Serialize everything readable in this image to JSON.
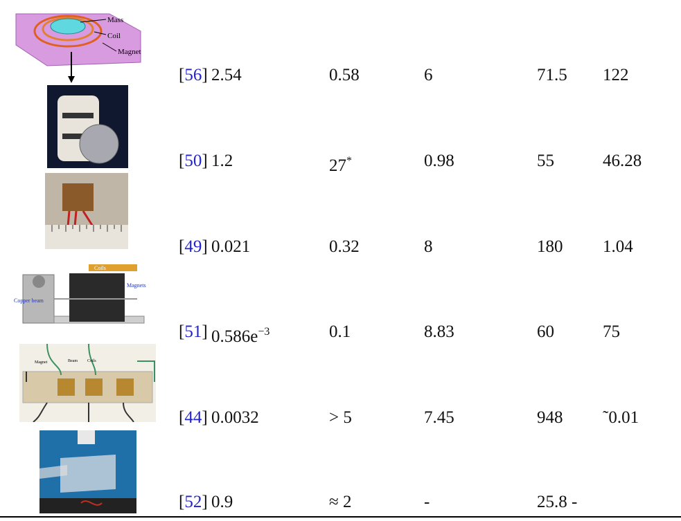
{
  "rows": [
    {
      "ref": "[56]",
      "cells": [
        "2.54",
        "0.58",
        "6",
        "71.5",
        "122"
      ]
    },
    {
      "ref": "[50]",
      "cells": [
        "1.2",
        {
          "base": "27",
          "sup": "*"
        },
        "0.98",
        "55",
        "46.28"
      ]
    },
    {
      "ref": "[49]",
      "cells": [
        "0.021",
        "0.32",
        "8",
        "180",
        "1.04"
      ]
    },
    {
      "ref": "[51]",
      "cells": [
        {
          "base": "0.586e",
          "sup": "−3"
        },
        "0.1",
        "8.83",
        "60",
        "75"
      ]
    },
    {
      "ref": "[44]",
      "cells": [
        "0.0032",
        "> 5",
        "7.45",
        "948",
        "˜0.01"
      ]
    },
    {
      "ref": "[52]",
      "cells": [
        "0.9",
        "≈ 2",
        "-",
        "25.8 -"
      ]
    }
  ],
  "figure_labels": {
    "fig1": [
      "Mass",
      "Coil",
      "Magnet"
    ],
    "fig4": [
      "Magnets",
      "Copper beam",
      "Coils"
    ],
    "fig5": [
      "Magnet",
      "Beam",
      "Coils"
    ]
  }
}
